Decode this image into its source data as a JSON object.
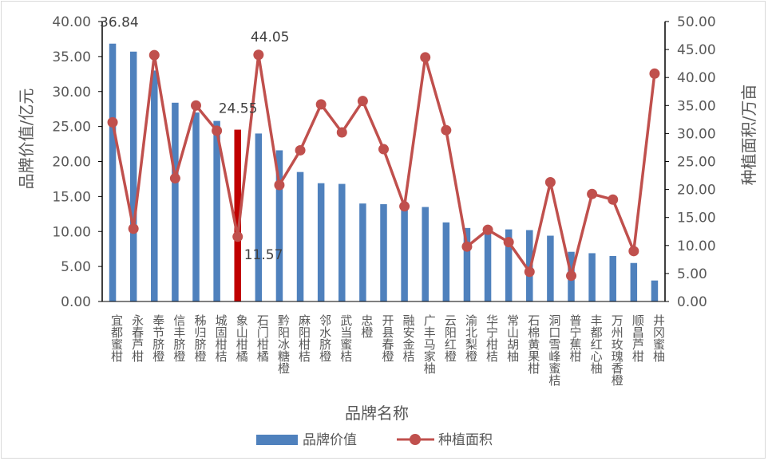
{
  "chart_data": {
    "type": "bar+line",
    "xlabel": "品牌名称",
    "ylabel_left": "品牌价值/亿元",
    "ylabel_right": "种植面积/万亩",
    "ylim_left": [
      0,
      40
    ],
    "ylim_right": [
      0,
      50
    ],
    "yticks_left": [
      "0.00",
      "5.00",
      "10.00",
      "15.00",
      "20.00",
      "25.00",
      "30.00",
      "35.00",
      "40.00"
    ],
    "yticks_right": [
      "0.00",
      "5.00",
      "10.00",
      "15.00",
      "20.00",
      "25.00",
      "30.00",
      "35.00",
      "40.00",
      "45.00",
      "50.00"
    ],
    "categories": [
      "宜都蜜柑",
      "永春芦柑",
      "奉节脐橙",
      "信丰脐橙",
      "秭归脐橙",
      "城固柑桔",
      "象山柑橘",
      "石门柑橘",
      "黔阳冰糖橙",
      "麻阳柑桔",
      "邻水脐橙",
      "武当蜜桔",
      "忠橙",
      "开县春橙",
      "融安金桔",
      "广丰马家柚",
      "云阳红橙",
      "渝北梨橙",
      "华宁柑桔",
      "常山胡柚",
      "石棉黄果柑",
      "洞口雪峰蜜桔",
      "普宁蕉柑",
      "丰都红心柚",
      "万州玫瑰香橙",
      "顺昌芦柑",
      "井冈蜜柚"
    ],
    "series": [
      {
        "name": "品牌价值",
        "axis": "left",
        "type": "bar",
        "color": "#4f81bd",
        "values": [
          36.84,
          35.7,
          33.0,
          28.4,
          27.0,
          25.8,
          24.55,
          24.0,
          21.6,
          18.5,
          16.9,
          16.8,
          14.0,
          13.9,
          13.6,
          13.5,
          11.3,
          10.5,
          10.4,
          10.3,
          10.2,
          9.4,
          7.1,
          6.9,
          6.5,
          5.5,
          3.0
        ]
      },
      {
        "name": "种植面积",
        "axis": "right",
        "type": "line",
        "color": "#c0504d",
        "values": [
          32.0,
          13.0,
          44.0,
          22.0,
          35.0,
          30.5,
          11.57,
          44.05,
          20.8,
          27.0,
          35.2,
          30.2,
          35.8,
          27.2,
          17.0,
          43.6,
          30.6,
          9.8,
          12.8,
          10.6,
          5.3,
          21.3,
          4.6,
          19.2,
          18.2,
          9.0,
          40.7
        ]
      }
    ],
    "highlight": {
      "index": 6,
      "color": "#c00000"
    },
    "annotations": [
      "36.84",
      "24.55",
      "44.05",
      "11.57"
    ],
    "legend": "bottom",
    "grid": false
  }
}
